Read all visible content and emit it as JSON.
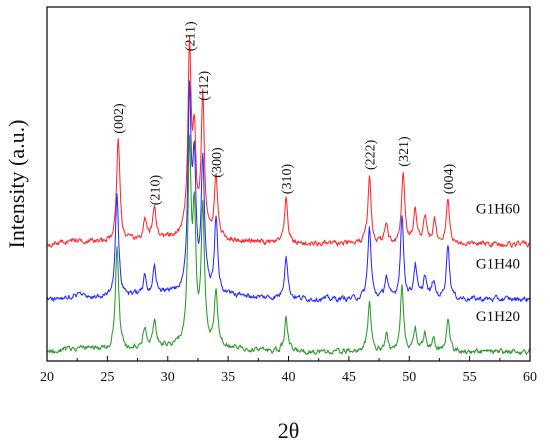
{
  "chart_data": {
    "type": "line",
    "title": "",
    "xlabel": "2θ",
    "ylabel": "Intensity (a.u.)",
    "xlim": [
      20,
      60
    ],
    "xticks": [
      20,
      25,
      30,
      35,
      40,
      45,
      50,
      55,
      60
    ],
    "yticks_shown": false,
    "grid": false,
    "legend": "none; series labels printed beside each trace on the right",
    "series": [
      {
        "name": "G1H60",
        "color": "#ff2a2a",
        "baseline": 0.98,
        "noise": 0.09,
        "peaks": [
          {
            "x": 25.9,
            "h": 0.95
          },
          {
            "x": 28.1,
            "h": 0.18
          },
          {
            "x": 28.9,
            "h": 0.3
          },
          {
            "x": 31.8,
            "h": 1.7
          },
          {
            "x": 32.2,
            "h": 0.85
          },
          {
            "x": 32.9,
            "h": 1.25
          },
          {
            "x": 34.0,
            "h": 0.55
          },
          {
            "x": 39.8,
            "h": 0.4
          },
          {
            "x": 46.7,
            "h": 0.62
          },
          {
            "x": 48.1,
            "h": 0.18
          },
          {
            "x": 49.5,
            "h": 0.65
          },
          {
            "x": 50.5,
            "h": 0.3
          },
          {
            "x": 51.3,
            "h": 0.25
          },
          {
            "x": 52.1,
            "h": 0.2
          },
          {
            "x": 53.2,
            "h": 0.4
          }
        ]
      },
      {
        "name": "G1H40",
        "color": "#2a2aff",
        "baseline": 0.48,
        "noise": 0.09,
        "peaks": [
          {
            "x": 25.8,
            "h": 0.95
          },
          {
            "x": 28.1,
            "h": 0.18
          },
          {
            "x": 28.9,
            "h": 0.25
          },
          {
            "x": 31.8,
            "h": 1.75
          },
          {
            "x": 32.2,
            "h": 1.1
          },
          {
            "x": 32.9,
            "h": 1.2
          },
          {
            "x": 34.0,
            "h": 0.65
          },
          {
            "x": 39.8,
            "h": 0.4
          },
          {
            "x": 46.7,
            "h": 0.65
          },
          {
            "x": 48.1,
            "h": 0.2
          },
          {
            "x": 49.4,
            "h": 0.75
          },
          {
            "x": 50.5,
            "h": 0.3
          },
          {
            "x": 51.3,
            "h": 0.2
          },
          {
            "x": 52.0,
            "h": 0.15
          },
          {
            "x": 53.2,
            "h": 0.5
          }
        ]
      },
      {
        "name": "G1H20",
        "color": "#2a9a2a",
        "baseline": 0.0,
        "noise": 0.09,
        "peaks": [
          {
            "x": 25.8,
            "h": 0.95
          },
          {
            "x": 28.1,
            "h": 0.18
          },
          {
            "x": 28.9,
            "h": 0.25
          },
          {
            "x": 31.8,
            "h": 1.75
          },
          {
            "x": 32.2,
            "h": 1.1
          },
          {
            "x": 32.9,
            "h": 1.2
          },
          {
            "x": 34.0,
            "h": 0.5
          },
          {
            "x": 39.8,
            "h": 0.3
          },
          {
            "x": 46.7,
            "h": 0.45
          },
          {
            "x": 48.1,
            "h": 0.15
          },
          {
            "x": 49.4,
            "h": 0.58
          },
          {
            "x": 50.5,
            "h": 0.2
          },
          {
            "x": 51.3,
            "h": 0.15
          },
          {
            "x": 52.0,
            "h": 0.12
          },
          {
            "x": 53.2,
            "h": 0.3
          }
        ]
      }
    ],
    "annotations": [
      {
        "text": "(002)",
        "x": 25.9
      },
      {
        "text": "(210)",
        "x": 28.9
      },
      {
        "text": "(211)",
        "x": 31.8
      },
      {
        "text": "(112)",
        "x": 32.9
      },
      {
        "text": "(300)",
        "x": 34.0
      },
      {
        "text": "(310)",
        "x": 39.8
      },
      {
        "text": "(222)",
        "x": 46.7
      },
      {
        "text": "(321)",
        "x": 49.5
      },
      {
        "text": "(004)",
        "x": 53.2
      }
    ]
  }
}
